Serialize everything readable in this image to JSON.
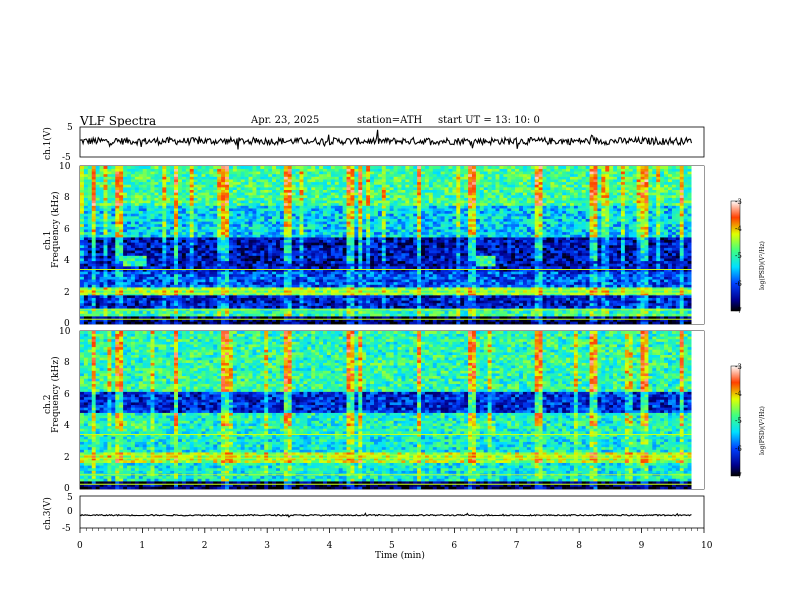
{
  "header": {
    "title": "VLF  Spectra",
    "date": "Apr. 23, 2025",
    "station": "station=ATH",
    "start": "start  UT  =    13: 10: 0"
  },
  "chart_data": [
    {
      "type": "line",
      "panel": "ch1-waveform",
      "ylabel": "ch.1(V)",
      "ylim": [
        -5,
        5
      ],
      "yticks": [
        "5",
        "-5"
      ],
      "xlim": [
        0,
        10
      ],
      "x_end": 9.8,
      "series_color": "#000000",
      "baseline": 0.3,
      "noise_amplitude": 1.2
    },
    {
      "type": "heatmap",
      "panel": "ch1-spectrogram",
      "ylabel": "ch.1\nFrequency  (kHz)",
      "ylim": [
        0,
        10
      ],
      "yticks": [
        "0",
        "2",
        "4",
        "6",
        "8",
        "10"
      ],
      "xlim": [
        0,
        10
      ],
      "x_end": 9.8,
      "colorbar": {
        "label": "log(PSD)(V²/Hz)",
        "range": [
          -7,
          -3
        ],
        "ticks": [
          "-3",
          "-4",
          "-5",
          "-6",
          "-7"
        ]
      },
      "bands": [
        {
          "fmin": 0.0,
          "fmax": 0.5,
          "level": -6.8
        },
        {
          "fmin": 0.5,
          "fmax": 1.0,
          "level": -5.0
        },
        {
          "fmin": 1.0,
          "fmax": 1.9,
          "level": -6.3
        },
        {
          "fmin": 1.9,
          "fmax": 2.3,
          "level": -4.6
        },
        {
          "fmin": 2.3,
          "fmax": 3.3,
          "level": -6.0
        },
        {
          "fmin": 3.3,
          "fmax": 5.5,
          "level": -6.4
        },
        {
          "fmin": 5.5,
          "fmax": 7.5,
          "level": -5.4
        },
        {
          "fmin": 7.5,
          "fmax": 10.0,
          "level": -4.9
        }
      ],
      "transmitter_patches": [
        {
          "t0": 0.65,
          "t1": 1.05,
          "fmin": 3.6,
          "fmax": 4.3,
          "level": -5.0
        },
        {
          "t0": 6.3,
          "t1": 6.65,
          "fmin": 3.6,
          "fmax": 4.3,
          "level": -5.0
        }
      ],
      "sferic_bursts": [
        0.2,
        0.6,
        1.5,
        2.3,
        3.3,
        4.3,
        4.45,
        5.4,
        6.25,
        7.3,
        8.2,
        9.0,
        9.6
      ]
    },
    {
      "type": "heatmap",
      "panel": "ch2-spectrogram",
      "ylabel": "ch.2\nFrequency  (kHz)",
      "ylim": [
        0,
        10
      ],
      "yticks": [
        "0",
        "2",
        "4",
        "6",
        "8",
        "10"
      ],
      "xlim": [
        0,
        10
      ],
      "x_end": 9.8,
      "colorbar": {
        "label": "log(PSD)(V²/Hz)",
        "range": [
          -7,
          -3
        ],
        "ticks": [
          "-3",
          "-4",
          "-5",
          "-6",
          "-7"
        ]
      },
      "bands": [
        {
          "fmin": 0.0,
          "fmax": 0.5,
          "level": -6.8
        },
        {
          "fmin": 0.5,
          "fmax": 1.6,
          "level": -5.2
        },
        {
          "fmin": 1.6,
          "fmax": 2.4,
          "level": -4.4
        },
        {
          "fmin": 2.4,
          "fmax": 3.3,
          "level": -5.2
        },
        {
          "fmin": 3.3,
          "fmax": 4.8,
          "level": -5.1
        },
        {
          "fmin": 4.8,
          "fmax": 6.2,
          "level": -6.2
        },
        {
          "fmin": 6.2,
          "fmax": 10.0,
          "level": -5.0
        }
      ],
      "transmitter_patches": [
        {
          "t0": 0.65,
          "t1": 1.05,
          "fmin": 3.6,
          "fmax": 4.3,
          "level": -4.8
        },
        {
          "t0": 6.3,
          "t1": 6.65,
          "fmin": 3.6,
          "fmax": 4.3,
          "level": -4.8
        }
      ],
      "sferic_bursts": [
        0.2,
        0.6,
        1.5,
        2.3,
        3.3,
        4.3,
        4.45,
        5.4,
        6.25,
        7.3,
        8.2,
        9.0,
        9.6
      ]
    },
    {
      "type": "line",
      "panel": "ch3-waveform",
      "ylabel": "ch.3(V)",
      "ylim": [
        -5,
        5
      ],
      "yticks": [
        "5",
        "0",
        "-5"
      ],
      "xlim": [
        0,
        10
      ],
      "x_end": 9.8,
      "series_color": "#000000",
      "baseline": -1.0,
      "noise_amplitude": 0.2
    }
  ],
  "xaxis": {
    "label": "Time  (min)",
    "ticks": [
      "0",
      "1",
      "2",
      "3",
      "4",
      "5",
      "6",
      "7",
      "8",
      "9",
      "10"
    ]
  }
}
